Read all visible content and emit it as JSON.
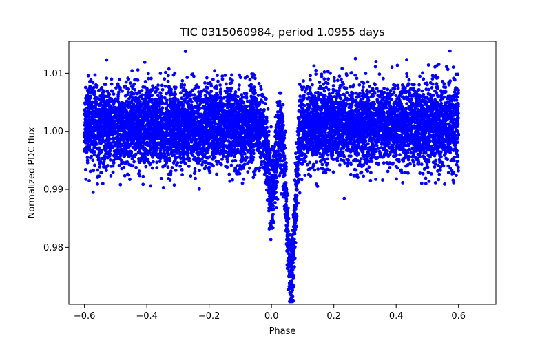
{
  "chart_data": {
    "type": "scatter",
    "title": "TIC 0315060984, period 1.0955 days",
    "xlabel": "Phase",
    "ylabel": "Normalized PDC flux",
    "xlim": [
      -0.65,
      0.72
    ],
    "ylim": [
      0.9702,
      1.0155
    ],
    "x_ticks": [
      -0.6,
      -0.4,
      -0.2,
      0.0,
      0.2,
      0.4,
      0.6
    ],
    "x_tick_labels": [
      "−0.6",
      "−0.4",
      "−0.2",
      "0.0",
      "0.2",
      "0.4",
      "0.6"
    ],
    "y_ticks": [
      0.98,
      0.99,
      1.0,
      1.01
    ],
    "y_tick_labels": [
      "0.98",
      "0.99",
      "1.00",
      "1.01"
    ],
    "grid": false,
    "marker_color": "#0000ff",
    "series": [
      {
        "x_range": [
          -0.6,
          0.6
        ],
        "baseline": 1.001,
        "scatter_sigma": 0.0035,
        "primary_eclipse": {
          "center": 0.062,
          "depth": 0.026,
          "width": 0.013
        },
        "secondary_eclipse": {
          "center": 0.0,
          "depth": 0.011,
          "width": 0.012
        }
      }
    ]
  }
}
